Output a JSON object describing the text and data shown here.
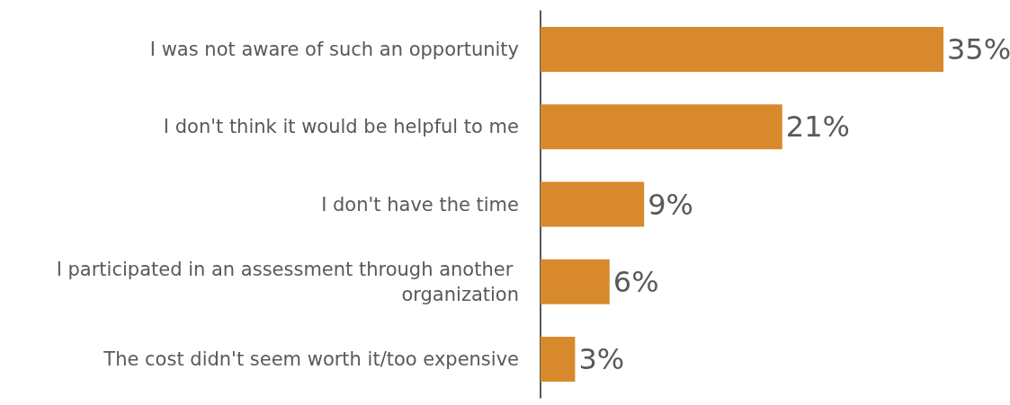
{
  "chart_data": {
    "type": "bar",
    "orientation": "horizontal",
    "categories": [
      "I was not aware of such an opportunity",
      "I don't think it would be helpful to me",
      "I don't have the time",
      "I participated in an assessment through another organization",
      "The cost didn't seem worth it/too expensive"
    ],
    "values": [
      35,
      21,
      9,
      6,
      3
    ],
    "value_labels": [
      "35%",
      "21%",
      "9%",
      "6%",
      "3%"
    ],
    "color": "#d8892c"
  }
}
